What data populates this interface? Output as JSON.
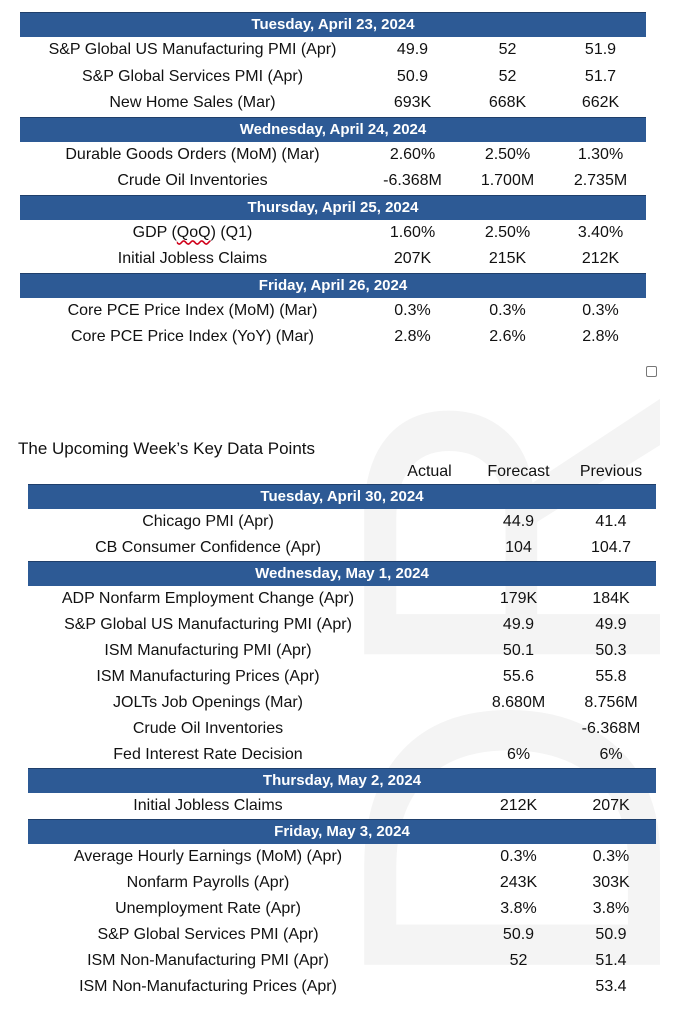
{
  "table1": {
    "sections": [
      {
        "header": "Tuesday, April 23, 2024",
        "rows": [
          {
            "event": "S&P Global US Manufacturing PMI (Apr)",
            "actual": "49.9",
            "forecast": "52",
            "previous": "51.9"
          },
          {
            "event": "S&P Global Services PMI (Apr)",
            "actual": "50.9",
            "forecast": "52",
            "previous": "51.7"
          },
          {
            "event": "New Home Sales (Mar)",
            "actual": "693K",
            "forecast": "668K",
            "previous": "662K"
          }
        ]
      },
      {
        "header": "Wednesday, April 24, 2024",
        "rows": [
          {
            "event": "Durable Goods Orders (MoM) (Mar)",
            "actual": "2.60%",
            "forecast": "2.50%",
            "previous": "1.30%"
          },
          {
            "event": "Crude Oil Inventories",
            "actual": "-6.368M",
            "forecast": "1.700M",
            "previous": "2.735M"
          }
        ]
      },
      {
        "header": "Thursday, April 25, 2024",
        "rows": [
          {
            "event_prefix": "GDP (",
            "event_flagged": "QoQ",
            "event_suffix": ") (Q1)",
            "actual": "1.60%",
            "forecast": "2.50%",
            "previous": "3.40%"
          },
          {
            "event": "Initial Jobless Claims",
            "actual": "207K",
            "forecast": "215K",
            "previous": "212K"
          }
        ]
      },
      {
        "header": "Friday, April 26, 2024",
        "rows": [
          {
            "event": "Core PCE Price Index (MoM) (Mar)",
            "actual": "0.3%",
            "forecast": "0.3%",
            "previous": "0.3%"
          },
          {
            "event": "Core PCE Price Index (YoY) (Mar)",
            "actual": "2.8%",
            "forecast": "2.6%",
            "previous": "2.8%"
          }
        ]
      }
    ]
  },
  "upcoming": {
    "title": "The Upcoming Week’s Key Data Points",
    "columns": {
      "actual": "Actual",
      "forecast": "Forecast",
      "previous": "Previous"
    },
    "sections": [
      {
        "header": "Tuesday, April 30, 2024",
        "rows": [
          {
            "event": "Chicago PMI (Apr)",
            "actual": "",
            "forecast": "44.9",
            "previous": "41.4"
          },
          {
            "event": "CB Consumer Confidence (Apr)",
            "actual": "",
            "forecast": "104",
            "previous": "104.7"
          }
        ]
      },
      {
        "header": "Wednesday, May 1, 2024",
        "rows": [
          {
            "event": "ADP Nonfarm Employment Change (Apr)",
            "actual": "",
            "forecast": "179K",
            "previous": "184K"
          },
          {
            "event": "S&P Global US Manufacturing PMI (Apr)",
            "actual": "",
            "forecast": "49.9",
            "previous": "49.9"
          },
          {
            "event": "ISM Manufacturing PMI (Apr)",
            "actual": "",
            "forecast": "50.1",
            "previous": "50.3"
          },
          {
            "event": "ISM Manufacturing Prices (Apr)",
            "actual": "",
            "forecast": "55.6",
            "previous": "55.8"
          },
          {
            "event": "JOLTs Job Openings (Mar)",
            "actual": "",
            "forecast": "8.680M",
            "previous": "8.756M"
          },
          {
            "event": "Crude Oil Inventories",
            "actual": "",
            "forecast": "",
            "previous": "-6.368M"
          },
          {
            "event": "Fed Interest Rate Decision",
            "actual": "",
            "forecast": "6%",
            "previous": "6%"
          }
        ]
      },
      {
        "header": "Thursday, May 2, 2024",
        "rows": [
          {
            "event": "Initial Jobless Claims",
            "actual": "",
            "forecast": "212K",
            "previous": "207K"
          }
        ]
      },
      {
        "header": "Friday, May 3, 2024",
        "rows": [
          {
            "event": "Average Hourly Earnings (MoM) (Apr)",
            "actual": "",
            "forecast": "0.3%",
            "previous": "0.3%"
          },
          {
            "event": "Nonfarm Payrolls (Apr)",
            "actual": "",
            "forecast": "243K",
            "previous": "303K"
          },
          {
            "event": "Unemployment Rate (Apr)",
            "actual": "",
            "forecast": "3.8%",
            "previous": "3.8%"
          },
          {
            "event": "S&P Global Services PMI (Apr)",
            "actual": "",
            "forecast": "50.9",
            "previous": "50.9"
          },
          {
            "event": "ISM Non-Manufacturing PMI (Apr)",
            "actual": "",
            "forecast": "52",
            "previous": "51.4"
          },
          {
            "event": "ISM Non-Manufacturing Prices (Apr)",
            "actual": "",
            "forecast": "",
            "previous": "53.4"
          }
        ]
      }
    ]
  },
  "watermark_text": "DRAFT",
  "colors": {
    "header_bg": "#2d5a95",
    "header_text": "#ffffff",
    "watermark": "#f4f4f4",
    "spellcheck_underline": "#d0021b"
  }
}
